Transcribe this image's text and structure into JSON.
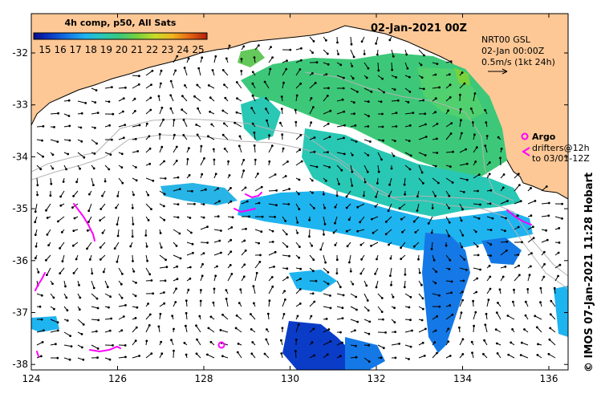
{
  "map": {
    "title": "02-Jan-2021 00Z",
    "colorbar": {
      "title": "4h comp, p50, All Sats",
      "ticks": [
        "15",
        "16",
        "17",
        "18",
        "19",
        "20",
        "21",
        "22",
        "23",
        "24",
        "25"
      ],
      "colors": [
        "#0a0a8c",
        "#0a3cc8",
        "#1478e6",
        "#1eb4f0",
        "#28c8b4",
        "#3cc878",
        "#78d23c",
        "#c8dc28",
        "#f0b41e",
        "#e66414",
        "#b41e0a"
      ]
    },
    "current_info": {
      "line1": "NRT00 GSL",
      "line2": "02-Jan 00:00Z",
      "line3": "0.5m/s (1kt 24h)"
    },
    "legend": {
      "argo_label": "Argo",
      "drifters_label": "drifters@12h",
      "drifters_range": "to 03/01-12Z"
    },
    "credit": "© IMOS 07-Jan-2021 11:28 Hobart",
    "axes": {
      "lon_labels": [
        "124",
        "126",
        "128",
        "130",
        "132",
        "134",
        "136"
      ],
      "lat_labels": [
        "-32",
        "-33",
        "-34",
        "-35",
        "-36",
        "-37",
        "-38"
      ]
    },
    "colors": {
      "land": "#fdc896",
      "argo": "#ff00ff",
      "drifters": "#ff00ff",
      "bathymetry": "#b4b4b4"
    }
  }
}
